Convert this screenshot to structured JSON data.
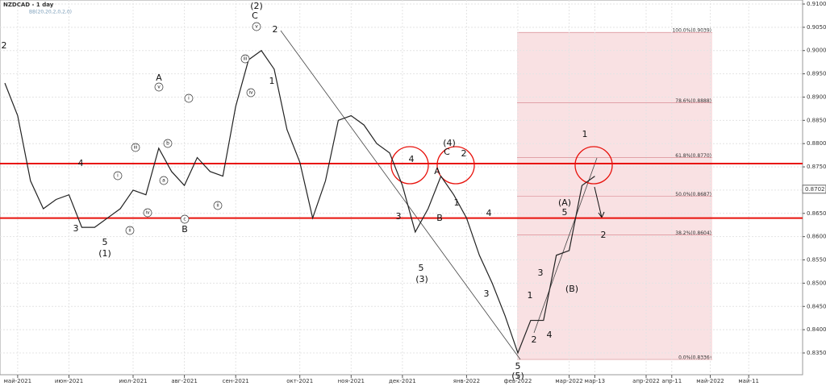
{
  "chart_data": {
    "type": "line",
    "title": "NZDCAD - 1 day",
    "subtitle": "BB(20,20,2,0,2,0)",
    "categories": [
      null,
      "май-2021",
      null,
      null,
      null,
      "июн-2021",
      null,
      null,
      null,
      null,
      "июл-2021",
      null,
      null,
      null,
      "авг-2021",
      null,
      null,
      null,
      "сен-2021",
      null,
      null,
      null,
      null,
      "окт-2021",
      null,
      null,
      null,
      "ноя-2021",
      null,
      null,
      null,
      "дек-2021",
      null,
      null,
      null,
      null,
      "янв-2022",
      null,
      null,
      null,
      "фев-2022",
      null,
      null,
      null,
      "мар-2022",
      null,
      "мар-13",
      null,
      null,
      null,
      "апр-2022",
      null,
      "апр-11",
      null,
      null,
      "май-2022",
      null,
      null,
      "май-11",
      null,
      null,
      null
    ],
    "series": [
      {
        "name": "NZDCAD",
        "color": "#222222",
        "values": [
          0.893,
          0.886,
          0.872,
          0.866,
          0.868,
          0.869,
          0.862,
          0.862,
          0.864,
          0.866,
          0.87,
          0.869,
          0.879,
          0.874,
          0.871,
          0.877,
          0.874,
          0.873,
          0.888,
          0.898,
          0.9,
          0.896,
          0.883,
          0.876,
          0.864,
          0.872,
          0.885,
          0.886,
          0.884,
          0.88,
          0.878,
          0.871,
          0.861,
          0.866,
          0.873,
          0.869,
          0.864,
          0.856,
          0.85,
          0.843,
          0.835,
          0.842,
          0.842,
          0.856,
          0.857,
          0.871,
          0.873,
          null,
          null,
          null,
          null,
          null,
          null,
          null,
          null,
          null,
          null,
          null,
          null,
          null,
          null,
          null
        ]
      }
    ],
    "ylim": [
      0.8336,
      0.9108
    ],
    "yticks": [
      {
        "value": 0.835,
        "label": "0.8350"
      },
      {
        "value": 0.84,
        "label": "0.8400"
      },
      {
        "value": 0.845,
        "label": "0.8450"
      },
      {
        "value": 0.85,
        "label": "0.8500"
      },
      {
        "value": 0.855,
        "label": "0.8550"
      },
      {
        "value": 0.86,
        "label": "0.8600"
      },
      {
        "value": 0.865,
        "label": "0.8650"
      },
      {
        "value": 0.87,
        "label": "0.8700"
      },
      {
        "value": 0.875,
        "label": "0.8750"
      },
      {
        "value": 0.88,
        "label": "0.8800"
      },
      {
        "value": 0.885,
        "label": "0.8850"
      },
      {
        "value": 0.89,
        "label": "0.8900"
      },
      {
        "value": 0.895,
        "label": "0.8950"
      },
      {
        "value": 0.9,
        "label": "0.9000"
      },
      {
        "value": 0.905,
        "label": "0.9050"
      },
      {
        "value": 0.91,
        "label": "0.9100"
      }
    ],
    "grid": true,
    "current_price": {
      "value": 0.8702,
      "label": "0.8702"
    },
    "levels": [
      0.8757,
      0.864
    ],
    "level_color": "#e8120c",
    "fib_levels": [
      {
        "value": 0.9039,
        "label": "100.0%(0.9039)"
      },
      {
        "value": 0.8888,
        "label": "78.6%(0.8888)"
      },
      {
        "value": 0.877,
        "label": "61.8%(0.8770)"
      },
      {
        "value": 0.8687,
        "label": "50.0%(0.8687)"
      },
      {
        "value": 0.8604,
        "label": "38.2%(0.8604)"
      },
      {
        "value": 0.8336,
        "label": "0.0%(0.8336)"
      }
    ],
    "annotations": [
      "2",
      "(2)",
      "C",
      "v",
      "2",
      "1",
      "iii",
      "iv",
      "A",
      "v",
      "i",
      "iii",
      "b",
      "a",
      "i",
      "iv",
      "ii",
      "ii",
      "c",
      "B",
      "3",
      "4",
      "5",
      "(1)",
      "4",
      "3",
      "5",
      "(3)",
      "(4)",
      "C",
      "2",
      "A",
      "B",
      "1",
      "4",
      "3",
      "5",
      "(5)",
      "1",
      "2",
      "3",
      "4",
      "(A)",
      "5",
      "(B)",
      "1",
      "2"
    ]
  }
}
